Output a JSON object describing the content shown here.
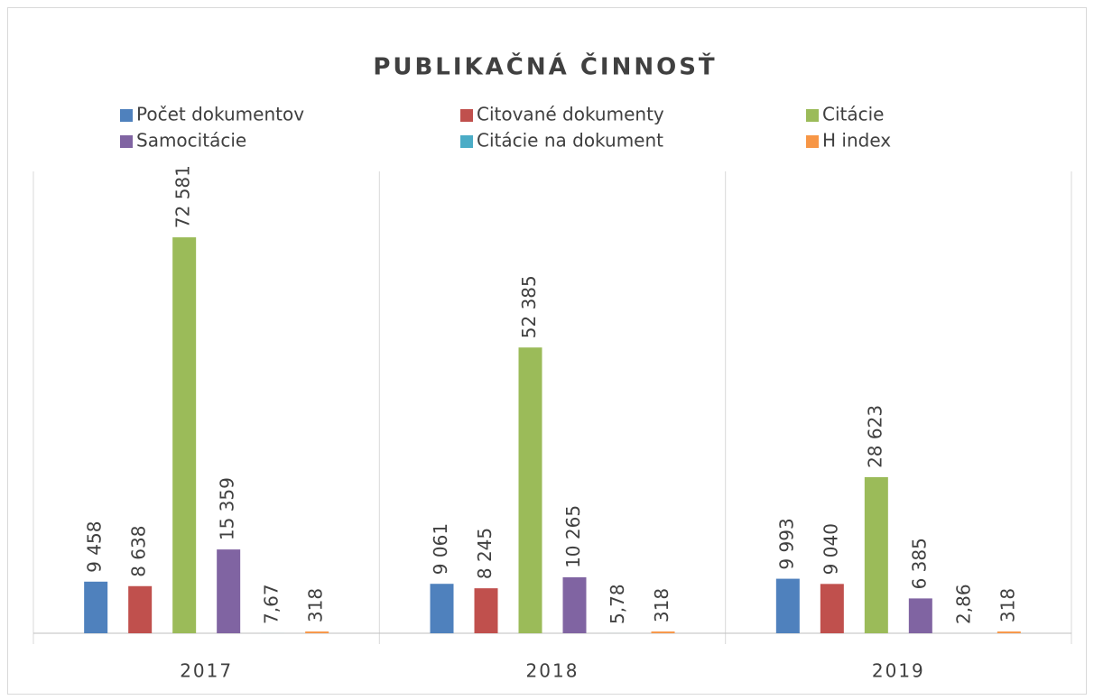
{
  "chart_data": {
    "type": "bar",
    "title": "PUBLIKAČNÁ ČINNOSŤ",
    "categories": [
      "2017",
      "2018",
      "2019"
    ],
    "series": [
      {
        "name": "Počet dokumentov",
        "color": "#4f81bd",
        "values": [
          9458,
          9061,
          9993
        ],
        "value_labels": [
          "9 458",
          "9 061",
          "9 993"
        ]
      },
      {
        "name": "Citované dokumenty",
        "color": "#c0504d",
        "values": [
          8638,
          8245,
          9040
        ],
        "value_labels": [
          "8 638",
          "8 245",
          "9 040"
        ]
      },
      {
        "name": "Citácie",
        "color": "#9bbb59",
        "values": [
          72581,
          52385,
          28623
        ],
        "value_labels": [
          "72 581",
          "52 385",
          "28 623"
        ]
      },
      {
        "name": "Samocitácie",
        "color": "#8064a2",
        "values": [
          15359,
          10265,
          6385
        ],
        "value_labels": [
          "15 359",
          "10 265",
          "6 385"
        ]
      },
      {
        "name": "Citácie na dokument",
        "color": "#4bacc6",
        "values": [
          7.67,
          5.78,
          2.86
        ],
        "value_labels": [
          "7,67",
          "5,78",
          "2,86"
        ]
      },
      {
        "name": "H index",
        "color": "#f79646",
        "values": [
          318,
          318,
          318
        ],
        "value_labels": [
          "318",
          "318",
          "318"
        ]
      }
    ],
    "ylim": [
      0,
      85000
    ],
    "legend": "top"
  }
}
